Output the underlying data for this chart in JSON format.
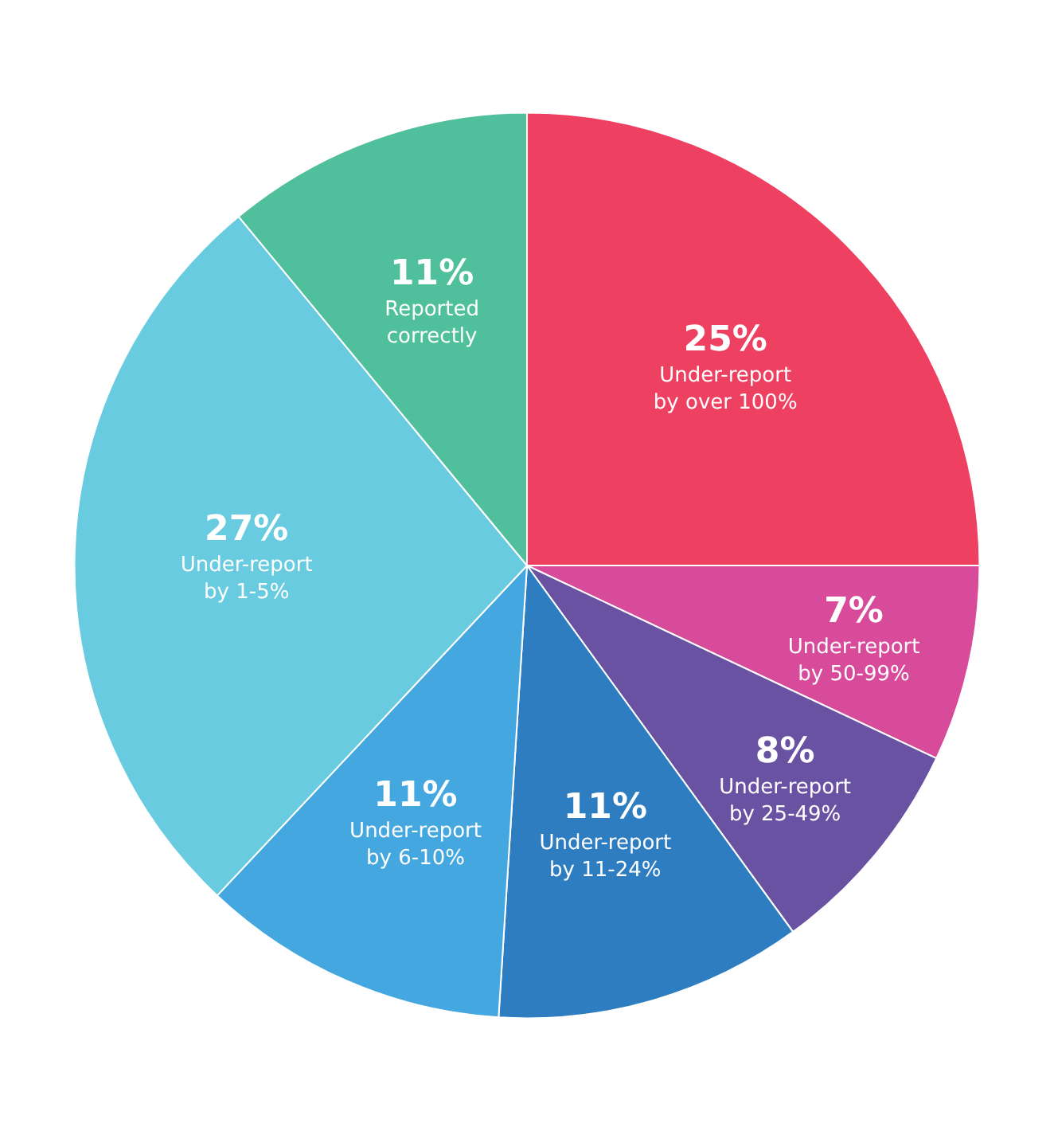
{
  "chart_data": {
    "type": "pie",
    "categories": [
      "Under-report by over 100%",
      "Under-report by 50-99%",
      "Under-report by 25-49%",
      "Under-report by 11-24%",
      "Under-report by 6-10%",
      "Under-report by 1-5%",
      "Reported correctly"
    ],
    "values": [
      25,
      7,
      8,
      11,
      11,
      27,
      11
    ],
    "value_labels": [
      "25%",
      "7%",
      "8%",
      "11%",
      "11%",
      "27%",
      "11%"
    ],
    "colors": [
      "#ee4060",
      "#d84b9b",
      "#6a52a3",
      "#2d7dc0",
      "#45a7df",
      "#68cbe0",
      "#50bf9b"
    ],
    "legend": false
  }
}
